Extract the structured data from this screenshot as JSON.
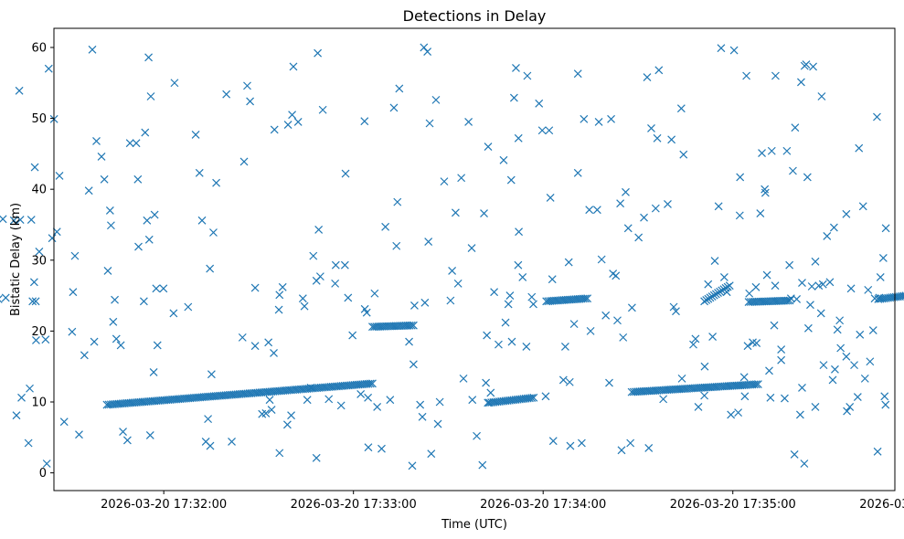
{
  "chart_data": {
    "type": "scatter",
    "title": "Detections in Delay",
    "xlabel": "Time (UTC)",
    "ylabel": "Bistatic Delay (km)",
    "marker": "x",
    "color": "#1f77b4",
    "grid": false,
    "x_unit": "seconds since 2026-03-20 17:30:00 UTC",
    "xlim": [
      56,
      322
    ],
    "ylim": [
      -2.5,
      62.7
    ],
    "x_ticks": [
      {
        "value": 120,
        "label": "2026-03-20 17:32:00"
      },
      {
        "value": 180,
        "label": "2026-03-20 17:33:00"
      },
      {
        "value": 240,
        "label": "2026-03-20 17:34:00"
      },
      {
        "value": 300,
        "label": "2026-03-20 17:35:00"
      },
      {
        "value": 360,
        "label": "2026-03-20 17:36:00"
      }
    ],
    "y_ticks": [
      {
        "value": 0,
        "label": "0"
      },
      {
        "value": 10,
        "label": "10"
      },
      {
        "value": 20,
        "label": "20"
      },
      {
        "value": 30,
        "label": "30"
      },
      {
        "value": 40,
        "label": "40"
      },
      {
        "value": 50,
        "label": "50"
      },
      {
        "value": 60,
        "label": "60"
      }
    ],
    "trend_tracks": [
      {
        "name": "track-a",
        "x_start": 102,
        "x_end": 186,
        "y_start": 9.6,
        "y_end": 12.6
      },
      {
        "name": "track-b",
        "x_start": 186,
        "x_end": 199,
        "y_start": 20.6,
        "y_end": 20.8
      },
      {
        "name": "track-c",
        "x_start": 223,
        "x_end": 237,
        "y_start": 9.9,
        "y_end": 10.6
      },
      {
        "name": "track-d",
        "x_start": 241,
        "x_end": 254,
        "y_start": 24.2,
        "y_end": 24.6
      },
      {
        "name": "track-e",
        "x_start": 268,
        "x_end": 308,
        "y_start": 11.4,
        "y_end": 12.5
      },
      {
        "name": "track-f",
        "x_start": 291,
        "x_end": 299,
        "y_start": 24.2,
        "y_end": 26.4
      },
      {
        "name": "track-g",
        "x_start": 305,
        "x_end": 318,
        "y_start": 24.1,
        "y_end": 24.3
      },
      {
        "name": "track-h",
        "x_start": 346,
        "x_end": 382,
        "y_start": 24.5,
        "y_end": 26.5
      },
      {
        "name": "track-i",
        "x_start": 356,
        "x_end": 375,
        "y_start": 26.4,
        "y_end": 26.0
      }
    ],
    "points": [
      [
        56.4,
        25.6
      ],
      [
        56.4,
        10.6
      ],
      [
        57.4,
        5.4
      ],
      [
        58.0,
        12.9
      ],
      [
        59.6,
        10.6
      ],
      [
        60.2,
        23.9
      ],
      [
        59.3,
        12.0
      ],
      [
        62.8,
        23.7
      ],
      [
        63.2,
        38.1
      ],
      [
        64.0,
        9.0
      ],
      [
        65.1,
        10.8
      ],
      [
        66.4,
        9.5
      ],
      [
        67.7,
        24.5
      ],
      [
        70.0,
        24.7
      ],
      [
        69.1,
        35.8
      ],
      [
        72.6,
        35.6
      ],
      [
        73.4,
        8.1
      ],
      [
        74.6,
        35.7
      ],
      [
        74.3,
        53.9
      ],
      [
        75.0,
        10.6
      ],
      [
        77.2,
        4.2
      ],
      [
        77.6,
        11.9
      ],
      [
        78.1,
        35.7
      ],
      [
        79.2,
        43.1
      ],
      [
        79.0,
        26.9
      ],
      [
        79.5,
        24.2
      ],
      [
        78.5,
        24.2
      ],
      [
        80.6,
        31.2
      ],
      [
        79.6,
        18.7
      ],
      [
        82.6,
        18.8
      ],
      [
        83.0,
        1.3
      ],
      [
        84.7,
        33.1
      ],
      [
        83.6,
        57.0
      ],
      [
        85.3,
        49.9
      ],
      [
        86.2,
        34.0
      ],
      [
        87.0,
        41.9
      ],
      [
        88.5,
        7.2
      ],
      [
        91.0,
        19.9
      ],
      [
        91.9,
        30.6
      ],
      [
        91.3,
        25.5
      ],
      [
        93.2,
        5.4
      ],
      [
        94.9,
        16.6
      ],
      [
        96.3,
        39.8
      ],
      [
        97.4,
        59.7
      ],
      [
        98.0,
        18.5
      ],
      [
        98.7,
        46.8
      ],
      [
        100.3,
        44.6
      ],
      [
        101.2,
        41.4
      ],
      [
        102.3,
        28.5
      ],
      [
        103.0,
        37.0
      ],
      [
        103.3,
        34.9
      ],
      [
        104.0,
        21.3
      ],
      [
        104.5,
        24.4
      ],
      [
        105.0,
        18.9
      ],
      [
        106.4,
        18.0
      ],
      [
        107.1,
        5.8
      ],
      [
        108.5,
        4.6
      ],
      [
        109.3,
        46.5
      ],
      [
        111.3,
        46.5
      ],
      [
        111.8,
        41.4
      ],
      [
        112.0,
        31.9
      ],
      [
        113.7,
        24.2
      ],
      [
        114.7,
        35.6
      ],
      [
        115.4,
        32.9
      ],
      [
        115.9,
        53.1
      ],
      [
        115.2,
        58.6
      ],
      [
        117.1,
        36.4
      ],
      [
        117.6,
        26.0
      ],
      [
        116.8,
        14.2
      ],
      [
        115.7,
        5.3
      ],
      [
        114.1,
        48.0
      ],
      [
        118.0,
        18.0
      ],
      [
        119.9,
        26.0
      ],
      [
        123.1,
        22.5
      ],
      [
        123.4,
        55.0
      ],
      [
        127.7,
        23.4
      ],
      [
        130.1,
        47.7
      ],
      [
        131.3,
        42.3
      ],
      [
        132.1,
        35.6
      ],
      [
        134.6,
        28.8
      ],
      [
        135.1,
        13.9
      ],
      [
        134.0,
        7.6
      ],
      [
        133.3,
        4.4
      ],
      [
        134.7,
        3.8
      ],
      [
        135.7,
        33.9
      ],
      [
        136.6,
        40.9
      ],
      [
        139.8,
        53.4
      ],
      [
        141.5,
        4.4
      ],
      [
        144.9,
        19.1
      ],
      [
        145.4,
        43.9
      ],
      [
        146.4,
        54.6
      ],
      [
        147.3,
        52.4
      ],
      [
        148.9,
        17.9
      ],
      [
        148.9,
        26.1
      ],
      [
        151.1,
        8.3
      ],
      [
        152.3,
        8.4
      ],
      [
        153.1,
        18.4
      ],
      [
        153.5,
        10.3
      ],
      [
        154.1,
        8.9
      ],
      [
        154.8,
        16.9
      ],
      [
        155.0,
        48.4
      ],
      [
        156.6,
        25.1
      ],
      [
        156.4,
        23.0
      ],
      [
        156.6,
        2.8
      ],
      [
        157.6,
        26.2
      ],
      [
        159.1,
        6.8
      ],
      [
        159.3,
        49.1
      ],
      [
        160.3,
        8.1
      ],
      [
        160.6,
        50.5
      ],
      [
        161.0,
        57.3
      ],
      [
        162.5,
        49.5
      ],
      [
        164.0,
        24.6
      ],
      [
        164.5,
        23.5
      ],
      [
        165.4,
        10.3
      ],
      [
        166.5,
        12.0
      ],
      [
        167.3,
        30.6
      ],
      [
        168.3,
        27.1
      ],
      [
        168.7,
        59.2
      ],
      [
        168.3,
        2.1
      ],
      [
        169.0,
        34.3
      ],
      [
        169.5,
        27.7
      ],
      [
        170.3,
        51.2
      ],
      [
        172.2,
        10.4
      ],
      [
        174.2,
        26.7
      ],
      [
        174.4,
        29.3
      ],
      [
        176.1,
        9.5
      ],
      [
        177.3,
        29.3
      ],
      [
        177.5,
        42.2
      ],
      [
        178.3,
        24.7
      ],
      [
        179.7,
        19.4
      ],
      [
        182.3,
        11.1
      ],
      [
        184.2,
        22.6
      ],
      [
        183.6,
        23.1
      ],
      [
        184.6,
        10.6
      ],
      [
        183.5,
        49.6
      ],
      [
        184.7,
        3.6
      ],
      [
        186.7,
        25.3
      ],
      [
        187.5,
        9.3
      ],
      [
        188.9,
        3.4
      ],
      [
        190.1,
        34.7
      ],
      [
        191.6,
        10.3
      ],
      [
        192.8,
        51.5
      ],
      [
        193.6,
        32.0
      ],
      [
        193.9,
        38.2
      ],
      [
        194.5,
        54.2
      ],
      [
        197.6,
        18.5
      ],
      [
        198.6,
        1.0
      ],
      [
        199.0,
        15.3
      ],
      [
        199.3,
        23.6
      ],
      [
        201.1,
        9.6
      ],
      [
        201.8,
        7.9
      ],
      [
        202.3,
        60.0
      ],
      [
        202.6,
        24.0
      ],
      [
        203.7,
        32.6
      ],
      [
        203.4,
        59.4
      ],
      [
        204.1,
        49.3
      ],
      [
        204.6,
        2.7
      ],
      [
        206.1,
        52.6
      ],
      [
        206.7,
        6.9
      ],
      [
        207.3,
        10.0
      ],
      [
        208.7,
        41.1
      ],
      [
        210.7,
        24.3
      ],
      [
        211.2,
        28.5
      ],
      [
        212.3,
        36.7
      ],
      [
        214.1,
        41.6
      ],
      [
        213.1,
        26.7
      ],
      [
        214.8,
        13.3
      ],
      [
        217.4,
        31.7
      ],
      [
        216.4,
        49.5
      ],
      [
        217.6,
        10.3
      ],
      [
        219.0,
        5.2
      ],
      [
        220.8,
        1.1
      ],
      [
        221.3,
        36.6
      ],
      [
        221.9,
        12.7
      ],
      [
        222.6,
        46.0
      ],
      [
        222.2,
        19.4
      ],
      [
        223.4,
        11.3
      ],
      [
        222.5,
        9.9
      ],
      [
        224.5,
        25.5
      ],
      [
        225.9,
        18.1
      ],
      [
        227.5,
        44.1
      ],
      [
        228.1,
        21.2
      ],
      [
        229.0,
        23.8
      ],
      [
        229.5,
        25.0
      ],
      [
        229.9,
        41.3
      ],
      [
        230.1,
        18.5
      ],
      [
        230.8,
        52.9
      ],
      [
        231.4,
        57.1
      ],
      [
        232.2,
        47.2
      ],
      [
        232.3,
        34.0
      ],
      [
        232.1,
        29.3
      ],
      [
        233.5,
        27.6
      ],
      [
        234.7,
        17.8
      ],
      [
        235.0,
        56.0
      ],
      [
        236.4,
        24.8
      ],
      [
        236.9,
        23.8
      ],
      [
        238.7,
        52.1
      ],
      [
        239.7,
        48.3
      ],
      [
        240.8,
        10.8
      ],
      [
        241.9,
        48.3
      ],
      [
        242.3,
        38.8
      ],
      [
        242.9,
        27.3
      ],
      [
        243.2,
        4.5
      ],
      [
        246.4,
        13.1
      ],
      [
        247.0,
        17.8
      ],
      [
        248.1,
        29.7
      ],
      [
        248.4,
        12.8
      ],
      [
        248.6,
        3.8
      ],
      [
        249.8,
        21.0
      ],
      [
        251.0,
        56.3
      ],
      [
        251.0,
        42.3
      ],
      [
        252.2,
        4.2
      ],
      [
        252.9,
        49.9
      ],
      [
        254.6,
        37.1
      ],
      [
        255.0,
        20.0
      ],
      [
        257.1,
        37.1
      ],
      [
        257.6,
        49.5
      ],
      [
        258.5,
        30.1
      ],
      [
        259.8,
        22.2
      ],
      [
        260.9,
        12.7
      ],
      [
        261.5,
        49.9
      ],
      [
        262.1,
        28.1
      ],
      [
        263.0,
        27.8
      ],
      [
        263.5,
        21.5
      ],
      [
        264.4,
        38.0
      ],
      [
        265.3,
        19.1
      ],
      [
        264.8,
        3.2
      ],
      [
        266.1,
        39.6
      ],
      [
        266.9,
        34.5
      ],
      [
        267.6,
        4.2
      ],
      [
        268.1,
        23.3
      ],
      [
        270.2,
        33.2
      ],
      [
        271.9,
        36.0
      ],
      [
        272.9,
        55.8
      ],
      [
        273.4,
        3.5
      ],
      [
        274.2,
        48.6
      ],
      [
        275.6,
        37.3
      ],
      [
        276.1,
        47.2
      ],
      [
        276.6,
        56.8
      ],
      [
        278.0,
        10.4
      ],
      [
        279.4,
        37.9
      ],
      [
        280.6,
        47.0
      ],
      [
        281.3,
        23.4
      ],
      [
        282.0,
        22.8
      ],
      [
        283.7,
        51.4
      ],
      [
        283.9,
        13.3
      ],
      [
        284.4,
        44.9
      ],
      [
        287.5,
        18.1
      ],
      [
        288.2,
        18.9
      ],
      [
        289.1,
        9.3
      ],
      [
        291.0,
        10.9
      ],
      [
        291.1,
        15.0
      ],
      [
        292.2,
        26.6
      ],
      [
        293.6,
        19.2
      ],
      [
        294.3,
        29.9
      ],
      [
        295.5,
        37.6
      ],
      [
        296.3,
        59.9
      ],
      [
        297.3,
        27.6
      ],
      [
        298.1,
        25.5
      ],
      [
        299.4,
        8.2
      ],
      [
        300.4,
        59.6
      ],
      [
        301.7,
        8.5
      ],
      [
        302.2,
        36.3
      ],
      [
        302.3,
        41.7
      ],
      [
        303.6,
        13.5
      ],
      [
        303.8,
        10.8
      ],
      [
        304.3,
        56.0
      ],
      [
        304.7,
        17.9
      ],
      [
        305.2,
        25.3
      ],
      [
        306.3,
        18.4
      ],
      [
        307.3,
        26.2
      ],
      [
        307.5,
        18.3
      ],
      [
        308.7,
        36.6
      ],
      [
        309.2,
        45.1
      ],
      [
        310.1,
        40.0
      ],
      [
        310.3,
        39.5
      ],
      [
        310.8,
        27.9
      ],
      [
        311.5,
        14.4
      ],
      [
        311.9,
        10.6
      ],
      [
        312.3,
        45.4
      ],
      [
        313.1,
        20.8
      ],
      [
        313.5,
        56.0
      ],
      [
        313.4,
        26.4
      ],
      [
        315.3,
        15.9
      ],
      [
        315.3,
        17.4
      ],
      [
        316.4,
        10.5
      ],
      [
        317.1,
        45.4
      ],
      [
        317.9,
        29.3
      ],
      [
        318.4,
        24.6
      ],
      [
        319.0,
        42.6
      ],
      [
        319.7,
        48.7
      ],
      [
        319.5,
        2.6
      ],
      [
        320.2,
        24.5
      ],
      [
        321.3,
        8.2
      ],
      [
        321.9,
        12.0
      ],
      [
        321.6,
        55.1
      ],
      [
        321.9,
        26.8
      ],
      [
        322.6,
        1.3
      ],
      [
        323.2,
        57.6
      ],
      [
        322.7,
        57.4
      ],
      [
        323.6,
        41.7
      ],
      [
        323.9,
        20.4
      ],
      [
        324.5,
        23.7
      ],
      [
        325.0,
        26.3
      ],
      [
        325.4,
        57.3
      ],
      [
        326.1,
        29.8
      ],
      [
        326.1,
        9.3
      ],
      [
        327.2,
        26.4
      ],
      [
        327.9,
        22.5
      ],
      [
        328.1,
        53.1
      ],
      [
        328.5,
        26.6
      ],
      [
        328.7,
        15.2
      ],
      [
        329.8,
        33.4
      ],
      [
        330.7,
        26.9
      ],
      [
        331.6,
        13.1
      ],
      [
        332.0,
        34.6
      ],
      [
        332.3,
        14.6
      ],
      [
        333.1,
        20.2
      ],
      [
        333.8,
        21.5
      ],
      [
        334.1,
        17.6
      ],
      [
        335.9,
        36.5
      ],
      [
        335.9,
        16.4
      ],
      [
        336.1,
        8.7
      ],
      [
        337.0,
        9.3
      ],
      [
        337.4,
        26.0
      ],
      [
        338.4,
        15.2
      ],
      [
        339.5,
        10.7
      ],
      [
        339.9,
        45.8
      ],
      [
        340.2,
        19.5
      ],
      [
        341.2,
        37.6
      ],
      [
        341.8,
        13.3
      ],
      [
        342.8,
        25.8
      ],
      [
        343.4,
        15.7
      ],
      [
        344.4,
        20.1
      ],
      [
        344.9,
        24.6
      ],
      [
        345.6,
        50.2
      ],
      [
        345.8,
        3.0
      ],
      [
        346.3,
        24.7
      ],
      [
        346.7,
        27.6
      ],
      [
        347.6,
        30.3
      ],
      [
        348.0,
        10.8
      ],
      [
        348.3,
        9.6
      ],
      [
        348.4,
        34.5
      ]
    ]
  }
}
